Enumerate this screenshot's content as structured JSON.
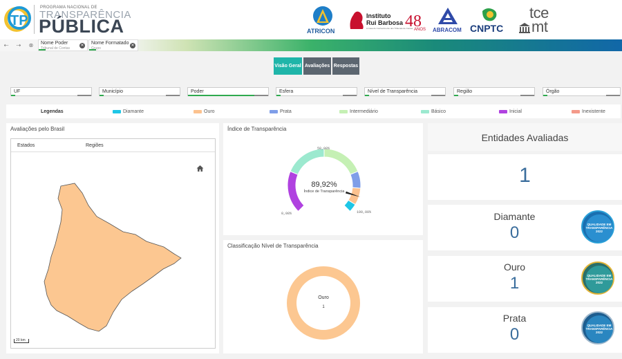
{
  "header": {
    "program_small": "PROGRAMA NACIONAL DE",
    "title_line1": "TRANSPARÊNCIA",
    "title_line2": "PÚBLICA",
    "partners": {
      "atricon": "ATRICON",
      "irb_line1": "Instituto",
      "irb_line2": "Rui Barbosa",
      "irb_sub": "A Casa do Conhecimento dos Tribunais de Contas",
      "abracom": "ABRACOM",
      "cnptc": "CNPTC",
      "tce_line1": "tce",
      "tce_line2": "mt"
    }
  },
  "filter_tabs": [
    {
      "label": "Nome Poder",
      "sub": "Tribunal de Contas"
    },
    {
      "label": "Nome Formatado ...",
      "sub": "Grupo"
    }
  ],
  "view_buttons": [
    {
      "label": "Visão Geral",
      "color": "#1fb5a9"
    },
    {
      "label": "Avaliações",
      "color": "#5c6670"
    },
    {
      "label": "Respostas",
      "color": "#5c6670"
    }
  ],
  "filters": [
    "UF",
    "Município",
    "Poder",
    "Esfera",
    "Nível de Transparência",
    "Região",
    "Órgão"
  ],
  "legend": {
    "title": "Legendas",
    "items": [
      {
        "label": "Diamante",
        "color": "#1ec6e6"
      },
      {
        "label": "Ouro",
        "color": "#fcc28f"
      },
      {
        "label": "Prata",
        "color": "#7f9ee8"
      },
      {
        "label": "Intermediário",
        "color": "#c5f0b4"
      },
      {
        "label": "Básico",
        "color": "#9ce9cf"
      },
      {
        "label": "Inicial",
        "color": "#b042e0"
      },
      {
        "label": "Inexistente",
        "color": "#f49a8a"
      }
    ]
  },
  "map_panel": {
    "title": "Avaliações pelo Brasil",
    "tab_states": "Estados",
    "tab_regions": "Regiões",
    "scale": "20 km",
    "state_color": "#fcc791"
  },
  "gauge_panel": {
    "title": "Índice de Transparência",
    "value_text": "89,92%",
    "value_label": "Índice de Transparência",
    "min_label": "0,00%",
    "mid_label": "50,00%",
    "max_label": "100,00%"
  },
  "class_panel": {
    "title": "Classificação Nível de Transparência",
    "slice_label": "Ouro",
    "slice_value": "1"
  },
  "entities": {
    "title": "Entidades Avaliadas",
    "total": "1",
    "cards": [
      {
        "label": "Diamante",
        "value": "0",
        "badge_text": "QUALIDADE EM TRANSPARÊNCIA",
        "badge_year": "2022"
      },
      {
        "label": "Ouro",
        "value": "1",
        "badge_text": "QUALIDADE EM TRANSPARÊNCIA",
        "badge_year": "2022"
      },
      {
        "label": "Prata",
        "value": "0",
        "badge_text": "QUALIDADE EM TRANSPARÊNCIA",
        "badge_year": "2022"
      }
    ]
  },
  "chart_data": [
    {
      "type": "gauge",
      "title": "Índice de Transparência",
      "value": 89.92,
      "range": [
        0,
        100
      ],
      "bands": [
        {
          "name": "Inicial",
          "from": 0,
          "to": 25,
          "color": "#b042e0"
        },
        {
          "name": "Básico",
          "from": 25,
          "to": 50,
          "color": "#9ce9cf"
        },
        {
          "name": "Intermediário",
          "from": 50,
          "to": 75,
          "color": "#c5f0b4"
        },
        {
          "name": "Prata",
          "from": 75,
          "to": 85,
          "color": "#7f9ee8"
        },
        {
          "name": "Ouro",
          "from": 85,
          "to": 95,
          "color": "#fcc28f"
        },
        {
          "name": "Diamante",
          "from": 95,
          "to": 100,
          "color": "#1ec6e6"
        }
      ]
    },
    {
      "type": "pie",
      "title": "Classificação Nível de Transparência",
      "categories": [
        "Ouro"
      ],
      "values": [
        1
      ],
      "colors": [
        "#fcc791"
      ]
    }
  ]
}
